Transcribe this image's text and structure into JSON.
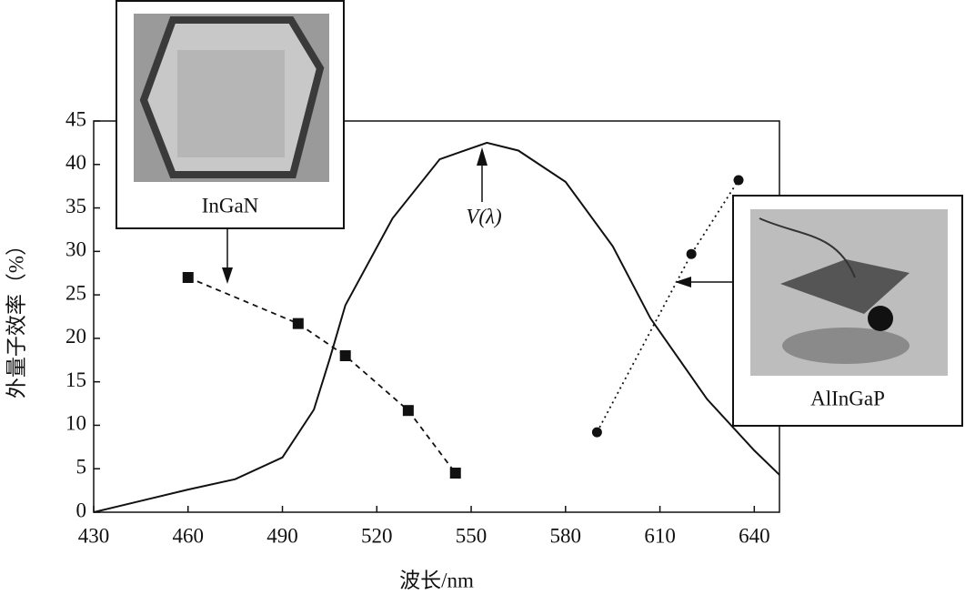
{
  "chart_data": {
    "type": "line",
    "x_label": "波长/nm",
    "y_label": "外量子效率（%）",
    "xlim": [
      430,
      648
    ],
    "xticks": [
      430,
      460,
      490,
      520,
      550,
      580,
      610,
      640
    ],
    "ylim": [
      0,
      45
    ],
    "yticks": [
      0,
      5,
      10,
      15,
      20,
      25,
      30,
      35,
      40,
      45
    ],
    "series": [
      {
        "name": "InGaN",
        "color": "#111111",
        "marker": "square",
        "dash": "dashed",
        "x": [
          460,
          495,
          510,
          530,
          545
        ],
        "values": [
          27,
          21.7,
          18,
          11.7,
          4.5
        ]
      },
      {
        "name": "AlInGaP",
        "color": "#111111",
        "marker": "circle",
        "dash": "dotted",
        "x": [
          590,
          620,
          635
        ],
        "values": [
          9.2,
          29.7,
          38.2
        ]
      },
      {
        "name": "V(λ)",
        "color": "#111111",
        "marker": "none",
        "dash": "solid",
        "x": [
          430,
          445,
          460,
          475,
          490,
          500,
          505,
          510,
          525,
          540,
          555,
          565,
          580,
          595,
          607,
          625,
          640,
          648
        ],
        "values": [
          0,
          1.3,
          2.6,
          3.8,
          6.3,
          11.8,
          17.6,
          23.8,
          33.8,
          40.6,
          42.5,
          41.6,
          38,
          30.6,
          22.3,
          13,
          7.1,
          4.3
        ]
      }
    ]
  }
}
